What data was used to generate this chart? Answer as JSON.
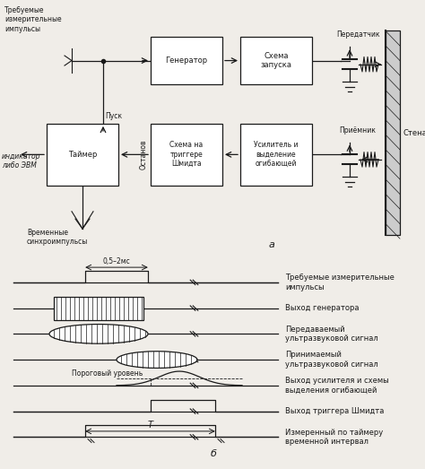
{
  "bg_color": "#f0ede8",
  "line_color": "#1a1a1a",
  "box_color": "#ffffff",
  "text_color": "#1a1a1a",
  "fig_width": 4.74,
  "fig_height": 5.23,
  "dpi": 100,
  "waveform_labels": [
    "Требуемые измерительные\nимпульсы",
    "Выход генератора",
    "Передаваемый\nультразвуковой сигнал",
    "Принимаемый\nультразвуковой сигнал",
    "Выход усилителя и схемы\nвыделения огибающей",
    "Выход триггера Шмидта",
    "Измеренный по таймеру\nвременной интервал"
  ]
}
